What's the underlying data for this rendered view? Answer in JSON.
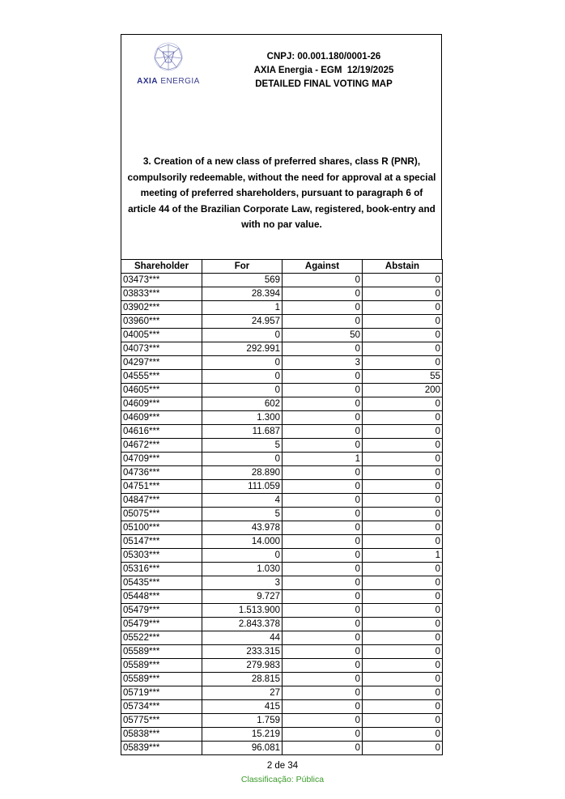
{
  "header": {
    "logo_text_bold": "AXIA",
    "logo_text": " ENERGIA",
    "cnpj": "CNPJ: 00.001.180/0001-26",
    "meeting": "AXIA Energia - EGM  12/19/2025",
    "title": "DETAILED FINAL VOTING MAP"
  },
  "question": "3.  Creation of a new class of preferred shares, class R (PNR), compulsorily redeemable, without the need for approval at a special meeting of preferred shareholders, pursuant to paragraph 6 of article 44 of the Brazilian Corporate Law, registered, book-entry and with no par value.",
  "table": {
    "columns": [
      "Shareholder",
      "For",
      "Against",
      "Abstain"
    ],
    "rows": [
      [
        "03473***",
        "569",
        "0",
        "0"
      ],
      [
        "03833***",
        "28.394",
        "0",
        "0"
      ],
      [
        "03902***",
        "1",
        "0",
        "0"
      ],
      [
        "03960***",
        "24.957",
        "0",
        "0"
      ],
      [
        "04005***",
        "0",
        "50",
        "0"
      ],
      [
        "04073***",
        "292.991",
        "0",
        "0"
      ],
      [
        "04297***",
        "0",
        "3",
        "0"
      ],
      [
        "04555***",
        "0",
        "0",
        "55"
      ],
      [
        "04605***",
        "0",
        "0",
        "200"
      ],
      [
        "04609***",
        "602",
        "0",
        "0"
      ],
      [
        "04609***",
        "1.300",
        "0",
        "0"
      ],
      [
        "04616***",
        "11.687",
        "0",
        "0"
      ],
      [
        "04672***",
        "5",
        "0",
        "0"
      ],
      [
        "04709***",
        "0",
        "1",
        "0"
      ],
      [
        "04736***",
        "28.890",
        "0",
        "0"
      ],
      [
        "04751***",
        "111.059",
        "0",
        "0"
      ],
      [
        "04847***",
        "4",
        "0",
        "0"
      ],
      [
        "05075***",
        "5",
        "0",
        "0"
      ],
      [
        "05100***",
        "43.978",
        "0",
        "0"
      ],
      [
        "05147***",
        "14.000",
        "0",
        "0"
      ],
      [
        "05303***",
        "0",
        "0",
        "1"
      ],
      [
        "05316***",
        "1.030",
        "0",
        "0"
      ],
      [
        "05435***",
        "3",
        "0",
        "0"
      ],
      [
        "05448***",
        "9.727",
        "0",
        "0"
      ],
      [
        "05479***",
        "1.513.900",
        "0",
        "0"
      ],
      [
        "05479***",
        "2.843.378",
        "0",
        "0"
      ],
      [
        "05522***",
        "44",
        "0",
        "0"
      ],
      [
        "05589***",
        "233.315",
        "0",
        "0"
      ],
      [
        "05589***",
        "279.983",
        "0",
        "0"
      ],
      [
        "05589***",
        "28.815",
        "0",
        "0"
      ],
      [
        "05719***",
        "27",
        "0",
        "0"
      ],
      [
        "05734***",
        "415",
        "0",
        "0"
      ],
      [
        "05775***",
        "1.759",
        "0",
        "0"
      ],
      [
        "05838***",
        "15.219",
        "0",
        "0"
      ],
      [
        "05839***",
        "96.081",
        "0",
        "0"
      ]
    ]
  },
  "footer": {
    "page": "2 de 34",
    "classification": "Classificação: Pública",
    "classification_color": "#3a9a2a"
  }
}
